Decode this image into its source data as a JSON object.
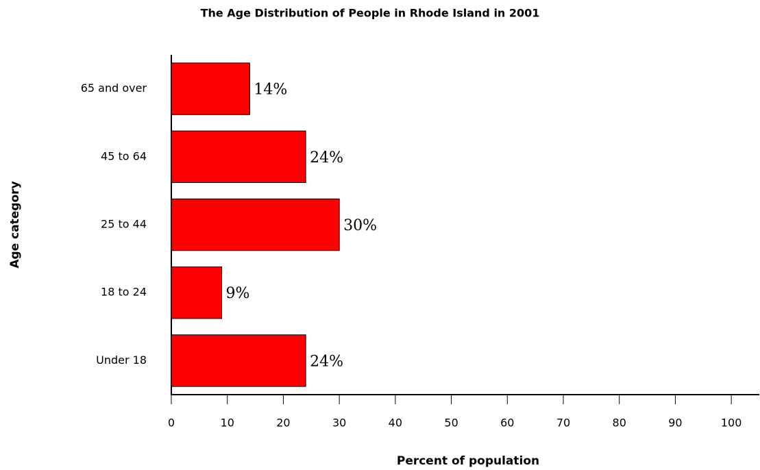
{
  "chart_data": {
    "type": "bar",
    "orientation": "horizontal",
    "title": "The Age Distribution of People in Rhode Island in 2001",
    "x_label": "Percent of population",
    "y_label": "Age category",
    "categories": [
      "Under 18",
      "18 to 24",
      "25 to 44",
      "45 to 64",
      "65 and over"
    ],
    "values": [
      24,
      9,
      30,
      24,
      14
    ],
    "value_labels": [
      "24%",
      "9%",
      "30%",
      "24%",
      "14%"
    ],
    "color": "#ff0000",
    "xlim": [
      0,
      105
    ],
    "xticks": [
      0,
      10,
      20,
      30,
      40,
      50,
      60,
      70,
      80,
      90,
      100
    ],
    "grid": false
  }
}
